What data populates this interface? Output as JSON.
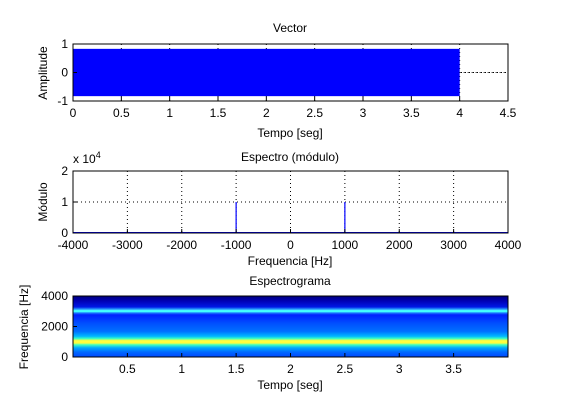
{
  "chart_data": [
    {
      "type": "area",
      "title": "Vector",
      "xlabel": "Tempo [seg]",
      "ylabel": "Amplitude",
      "xlim": [
        0,
        4.5
      ],
      "ylim": [
        -1,
        1
      ],
      "xticks": [
        "0",
        "0.5",
        "1",
        "1.5",
        "2",
        "2.5",
        "3",
        "3.5",
        "4",
        "4.5"
      ],
      "yticks": [
        "-1",
        "0",
        "1"
      ],
      "grid": true,
      "signal": {
        "t_start": 0,
        "t_end": 4.0,
        "amplitude_max": 0.83,
        "amplitude_min": -0.83,
        "color": "#0000ff"
      }
    },
    {
      "type": "line",
      "title": "Espectro (módulo)",
      "xlabel": "Frequencia [Hz]",
      "ylabel": "Módulo",
      "scale_label": "x 10",
      "scale_exponent": "4",
      "xlim": [
        -4000,
        4000
      ],
      "ylim": [
        0,
        2
      ],
      "xticks": [
        "-4000",
        "-3000",
        "-2000",
        "-1000",
        "0",
        "1000",
        "2000",
        "3000",
        "4000"
      ],
      "yticks": [
        "0",
        "1",
        "2"
      ],
      "grid": true,
      "peaks": [
        {
          "x": -1000,
          "y": 1.0
        },
        {
          "x": 1000,
          "y": 1.0
        }
      ],
      "color": "#0000ff"
    },
    {
      "type": "heatmap",
      "title": "Espectrograma",
      "xlabel": "Tempo [seg]",
      "ylabel": "Frequencia [Hz]",
      "xlim": [
        0,
        4
      ],
      "ylim": [
        0,
        4000
      ],
      "xticks": [
        "0.5",
        "1",
        "1.5",
        "2",
        "2.5",
        "3",
        "3.5"
      ],
      "yticks": [
        "0",
        "2000",
        "4000"
      ],
      "bands": [
        {
          "freq": 1000,
          "color": "#ffff40",
          "intensity": "high"
        },
        {
          "freq": 3000,
          "color": "#40ffff",
          "intensity": "medium"
        }
      ],
      "colormap": "jet"
    }
  ]
}
